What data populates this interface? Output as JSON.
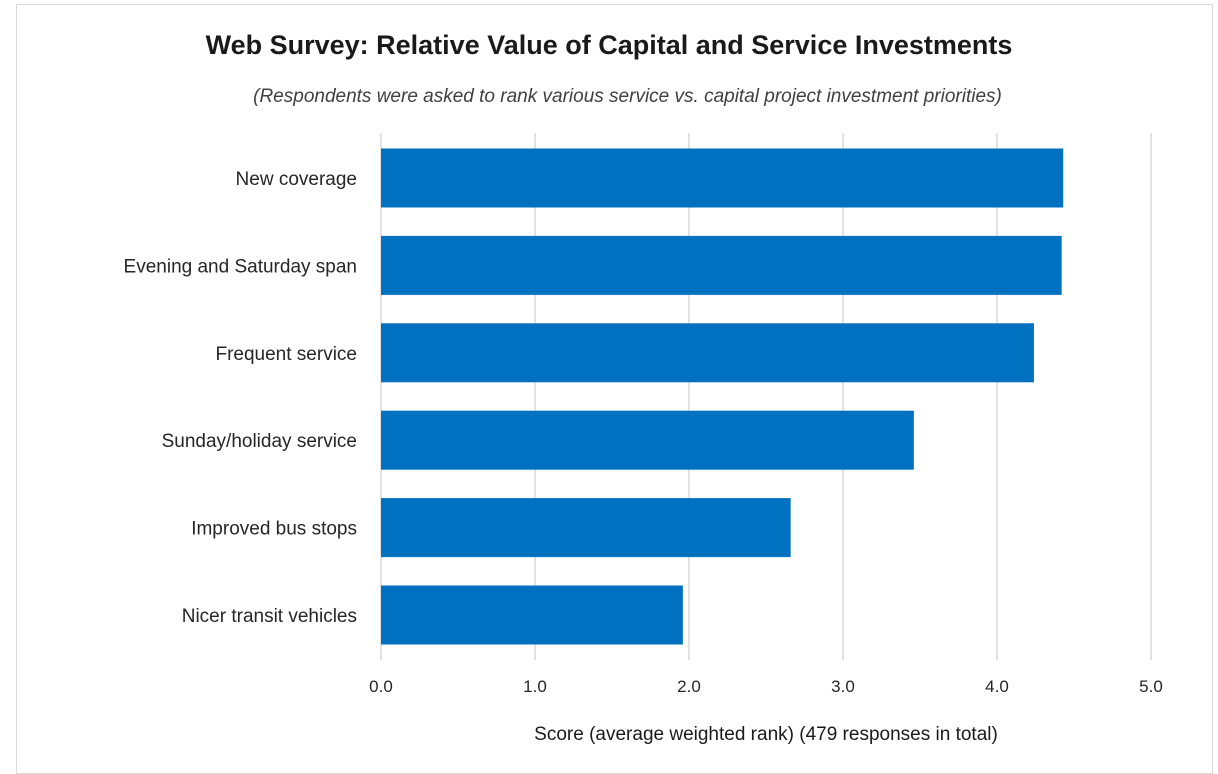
{
  "chart_data": {
    "type": "bar",
    "orientation": "horizontal",
    "title": "Web Survey: Relative Value of Capital and Service Investments",
    "subtitle": "(Respondents were asked to rank various service vs. capital project investment priorities)",
    "categories": [
      "New coverage",
      "Evening and Saturday span",
      "Frequent service",
      "Sunday/holiday service",
      "Improved bus stops",
      "Nicer transit vehicles"
    ],
    "values": [
      4.43,
      4.42,
      4.24,
      3.46,
      2.66,
      1.96
    ],
    "xlabel": "Score (average weighted rank) (479 responses in total)",
    "ylabel": "",
    "xlim": [
      0,
      5
    ],
    "xticks": [
      "0.0",
      "1.0",
      "2.0",
      "3.0",
      "4.0",
      "5.0"
    ],
    "grid": "vertical",
    "legend": "none",
    "bar_color": "#0070C0",
    "grid_color": "#d9d9d9"
  }
}
